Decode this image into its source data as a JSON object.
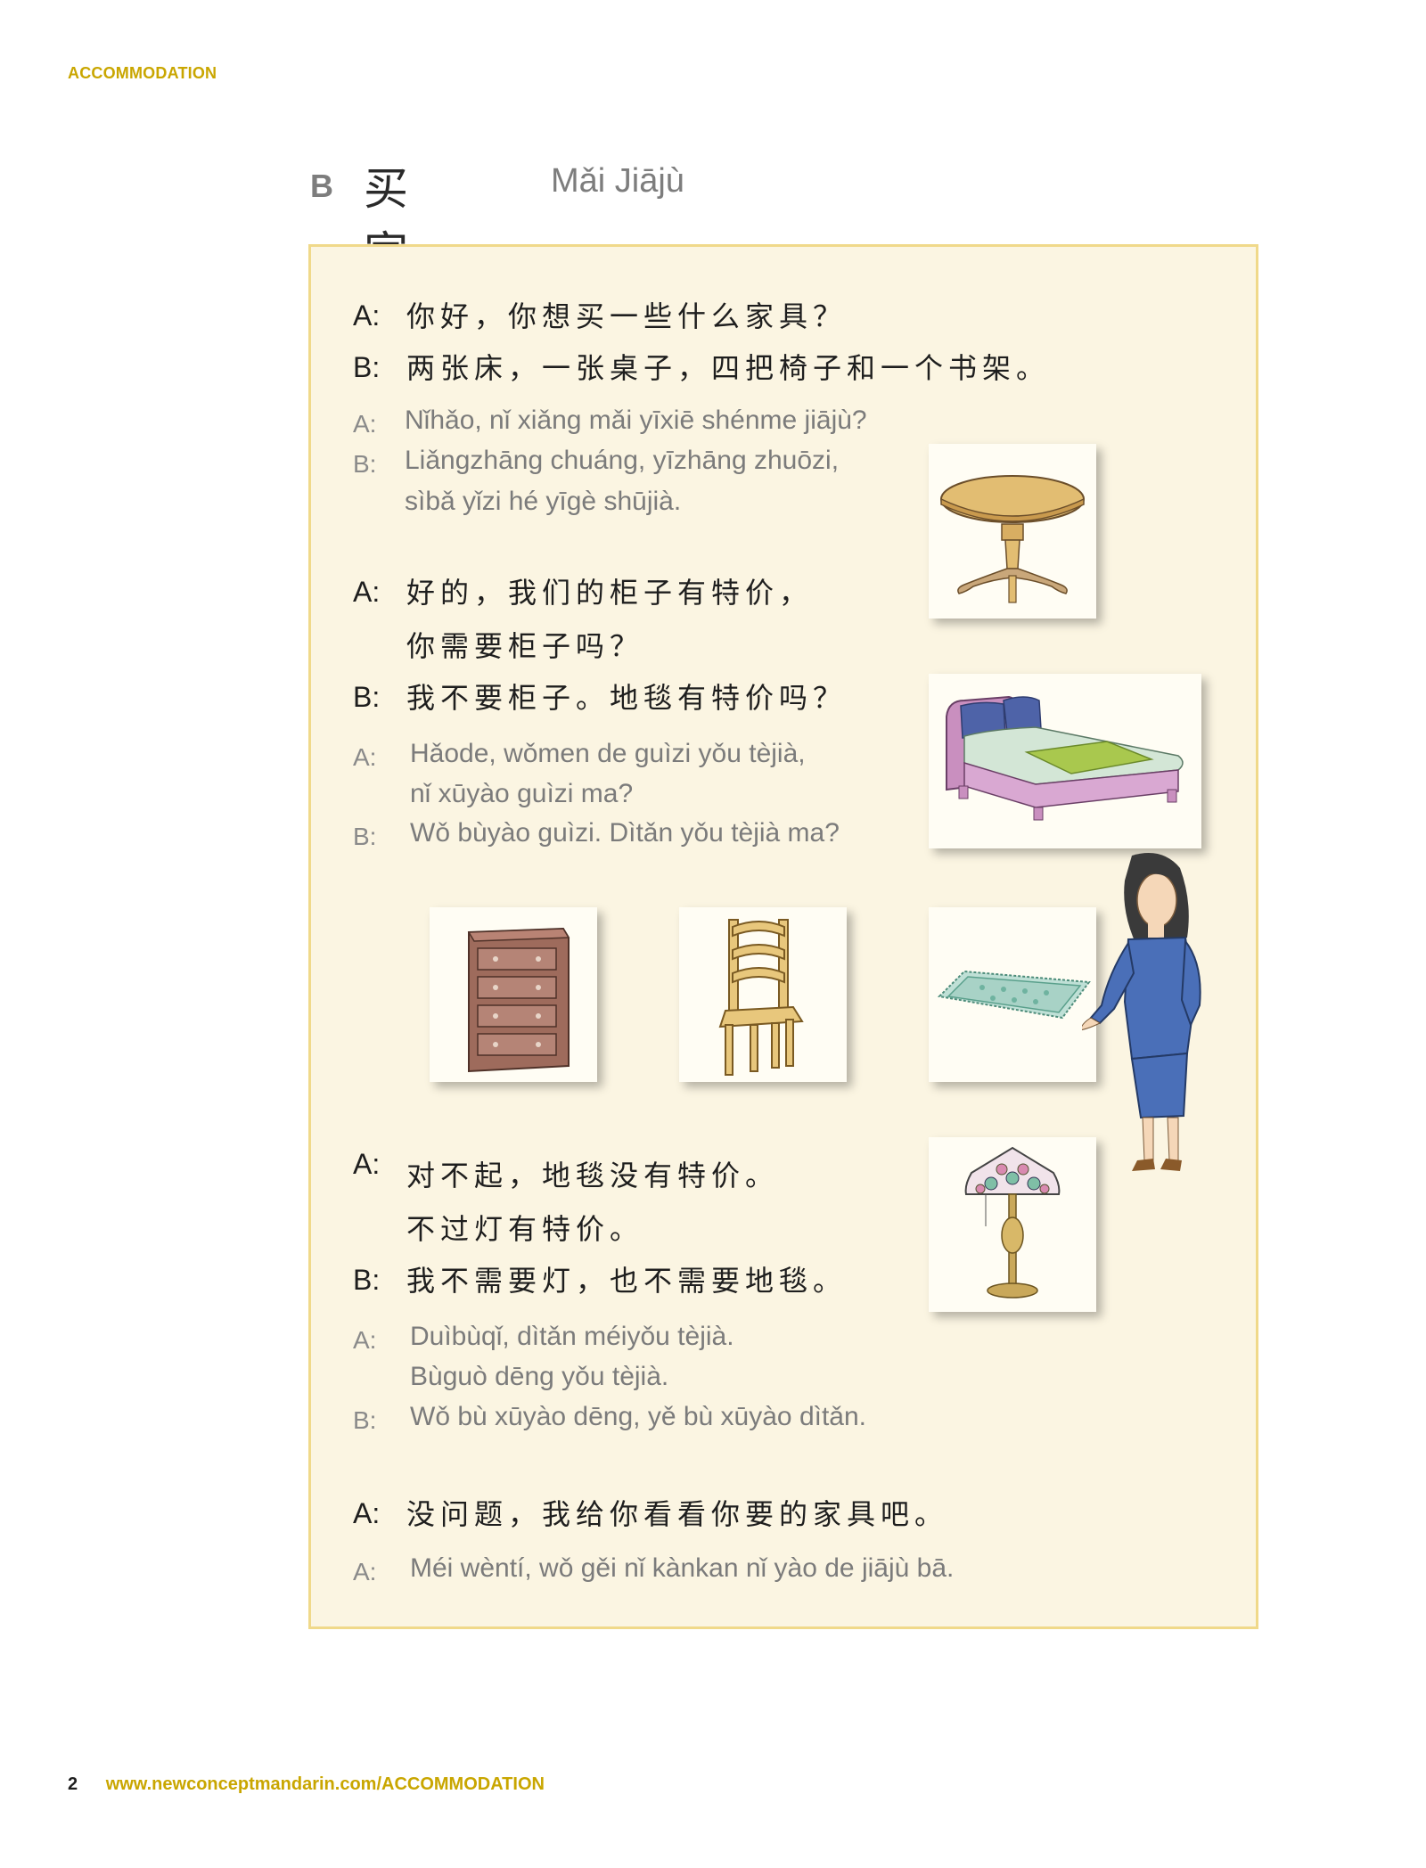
{
  "header": {
    "label": "ACCOMMODATION"
  },
  "section": {
    "letter": "B",
    "title_zh": "买家具",
    "title_pinyin": "Mǎi Jiājù"
  },
  "dialogue": {
    "speaker_a": "A:",
    "speaker_b": "B:",
    "l1_zh": "你好，你想买一些什么家具？",
    "l2_zh": "两张床，一张桌子，四把椅子和一个书架。",
    "l1_py": "Nǐhǎo, nǐ xiǎng mǎi yīxiē shénme jiājù?",
    "l2_py_1": "Liǎngzhāng chuáng, yīzhāng zhuōzi,",
    "l2_py_2": "sìbǎ yǐzi hé yīgè shūjià.",
    "l3_zh_1": "好的，我们的柜子有特价，",
    "l3_zh_2": "你需要柜子吗？",
    "l4_zh": "我不要柜子。地毯有特价吗？",
    "l3_py_1": "Hǎode, wǒmen de guìzi yǒu tèjià,",
    "l3_py_2": "nǐ xūyào guìzi ma?",
    "l4_py": "Wǒ bùyào guìzi. Dìtǎn yǒu tèjià ma?",
    "l5_zh_1": "对不起，地毯没有特价。",
    "l5_zh_2": "不过灯有特价。",
    "l6_zh": "我不需要灯，也不需要地毯。",
    "l5_py_1": "Duìbùqǐ, dìtǎn méiyǒu tèjià.",
    "l5_py_2": "Bùguò dēng yǒu tèjià.",
    "l6_py": "Wǒ bù xūyào dēng, yě bù xūyào dìtǎn.",
    "l7_zh": "没问题，我给你看看你要的家具吧。",
    "l7_py": "Méi wèntí, wǒ gěi nǐ kànkan nǐ yào de jiājù bā."
  },
  "footer": {
    "page_number": "2",
    "url": "www.newconceptmandarin.com/ACCOMMODATION"
  },
  "icons": [
    "table-image",
    "bed-image",
    "cabinet-image",
    "chair-image",
    "rug-image",
    "lamp-image",
    "saleswoman-image"
  ]
}
